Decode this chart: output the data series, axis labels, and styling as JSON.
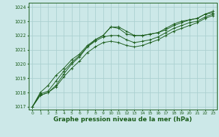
{
  "title": "Graphe pression niveau de la mer (hPa)",
  "bg_color": "#cce8e8",
  "grid_color": "#aad0d0",
  "line_color": "#1a5c1a",
  "xlim": [
    -0.5,
    23.5
  ],
  "ylim": [
    1016.8,
    1024.3
  ],
  "yticks": [
    1017,
    1018,
    1019,
    1020,
    1021,
    1022,
    1023,
    1024
  ],
  "xticks": [
    0,
    1,
    2,
    3,
    4,
    5,
    6,
    7,
    8,
    9,
    10,
    11,
    12,
    13,
    14,
    15,
    16,
    17,
    18,
    19,
    20,
    21,
    22,
    23
  ],
  "series": [
    [
      1017.0,
      1017.8,
      1018.0,
      1018.5,
      1019.3,
      1020.0,
      1020.5,
      1021.2,
      1021.7,
      1022.0,
      1022.6,
      1022.6,
      1022.3,
      1022.0,
      1022.0,
      1022.1,
      1022.2,
      1022.4,
      1022.7,
      1022.9,
      1023.1,
      1023.2,
      1023.5,
      1023.6
    ],
    [
      1017.0,
      1018.0,
      1018.5,
      1019.2,
      1019.7,
      1020.3,
      1020.7,
      1021.3,
      1021.7,
      1022.0,
      1022.6,
      1022.5,
      1022.1,
      1022.0,
      1022.0,
      1022.1,
      1022.2,
      1022.5,
      1022.8,
      1023.0,
      1023.1,
      1023.2,
      1023.5,
      1023.7
    ],
    [
      1017.0,
      1017.9,
      1018.1,
      1018.8,
      1019.5,
      1020.1,
      1020.6,
      1021.2,
      1021.6,
      1021.9,
      1022.0,
      1022.0,
      1021.7,
      1021.5,
      1021.6,
      1021.7,
      1021.9,
      1022.2,
      1022.5,
      1022.7,
      1022.9,
      1023.0,
      1023.3,
      1023.5
    ],
    [
      1017.0,
      1017.8,
      1018.0,
      1018.4,
      1019.1,
      1019.7,
      1020.2,
      1020.8,
      1021.2,
      1021.5,
      1021.6,
      1021.5,
      1021.3,
      1021.2,
      1021.3,
      1021.5,
      1021.7,
      1022.0,
      1022.3,
      1022.5,
      1022.7,
      1022.9,
      1023.2,
      1023.4
    ]
  ],
  "ylabel_fontsize": 5.0,
  "xlabel_fontsize": 6.5,
  "tick_fontsize": 4.5,
  "figsize": [
    3.2,
    2.0
  ],
  "dpi": 100
}
